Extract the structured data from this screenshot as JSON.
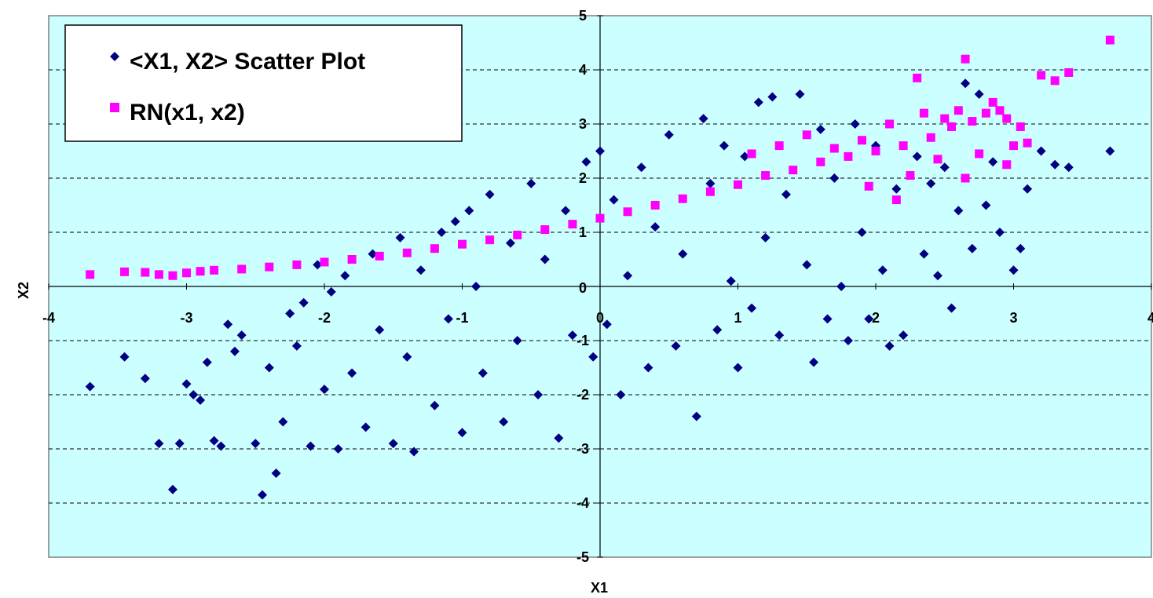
{
  "chart_data": {
    "type": "scatter",
    "xlabel": "X1",
    "ylabel": "X2",
    "xlim": [
      -4,
      4
    ],
    "ylim": [
      -5,
      5
    ],
    "x_ticks": [
      "-4",
      "-3",
      "-2",
      "-1",
      "0",
      "1",
      "2",
      "3",
      "4"
    ],
    "y_ticks": [
      "5",
      "4",
      "3",
      "2",
      "1",
      "0",
      "-1",
      "-2",
      "-3",
      "-4",
      "-5"
    ],
    "grid": "horizontal dashed",
    "legend_placement": "top-left",
    "plot_background": "#ccffff",
    "series": [
      {
        "name": "<X1, X2> Scatter Plot",
        "marker": "diamond",
        "color": "#000080",
        "points": [
          [
            -3.7,
            -1.85
          ],
          [
            -3.45,
            -1.3
          ],
          [
            -3.3,
            -1.7
          ],
          [
            -3.2,
            -2.9
          ],
          [
            -3.1,
            -3.75
          ],
          [
            -3.05,
            -2.9
          ],
          [
            -3.0,
            -1.8
          ],
          [
            -2.95,
            -2.0
          ],
          [
            -2.9,
            -2.1
          ],
          [
            -2.85,
            -1.4
          ],
          [
            -2.8,
            -2.85
          ],
          [
            -2.75,
            -2.95
          ],
          [
            -2.7,
            -0.7
          ],
          [
            -2.65,
            -1.2
          ],
          [
            -2.6,
            -0.9
          ],
          [
            -2.5,
            -2.9
          ],
          [
            -2.45,
            -3.85
          ],
          [
            -2.4,
            -1.5
          ],
          [
            -2.35,
            -3.45
          ],
          [
            -2.3,
            -2.5
          ],
          [
            -2.25,
            -0.5
          ],
          [
            -2.2,
            -1.1
          ],
          [
            -2.15,
            -0.3
          ],
          [
            -2.1,
            -2.95
          ],
          [
            -2.05,
            0.4
          ],
          [
            -2.0,
            -1.9
          ],
          [
            -1.95,
            -0.1
          ],
          [
            -1.9,
            -3.0
          ],
          [
            -1.85,
            0.2
          ],
          [
            -1.8,
            -1.6
          ],
          [
            -1.7,
            -2.6
          ],
          [
            -1.65,
            0.6
          ],
          [
            -1.6,
            -0.8
          ],
          [
            -1.5,
            -2.9
          ],
          [
            -1.45,
            0.9
          ],
          [
            -1.4,
            -1.3
          ],
          [
            -1.35,
            -3.05
          ],
          [
            -1.3,
            0.3
          ],
          [
            -1.2,
            -2.2
          ],
          [
            -1.15,
            1.0
          ],
          [
            -1.1,
            -0.6
          ],
          [
            -1.05,
            1.2
          ],
          [
            -1.0,
            -2.7
          ],
          [
            -0.95,
            1.4
          ],
          [
            -0.9,
            0.0
          ],
          [
            -0.85,
            -1.6
          ],
          [
            -0.8,
            1.7
          ],
          [
            -0.7,
            -2.5
          ],
          [
            -0.65,
            0.8
          ],
          [
            -0.6,
            -1.0
          ],
          [
            -0.5,
            1.9
          ],
          [
            -0.45,
            -2.0
          ],
          [
            -0.4,
            0.5
          ],
          [
            -0.3,
            -2.8
          ],
          [
            -0.25,
            1.4
          ],
          [
            -0.2,
            -0.9
          ],
          [
            -0.1,
            2.3
          ],
          [
            -0.05,
            -1.3
          ],
          [
            0.0,
            2.5
          ],
          [
            0.05,
            -0.7
          ],
          [
            0.1,
            1.6
          ],
          [
            0.15,
            -2.0
          ],
          [
            0.2,
            0.2
          ],
          [
            0.3,
            2.2
          ],
          [
            0.35,
            -1.5
          ],
          [
            0.4,
            1.1
          ],
          [
            0.5,
            2.8
          ],
          [
            0.55,
            -1.1
          ],
          [
            0.6,
            0.6
          ],
          [
            0.7,
            -2.4
          ],
          [
            0.75,
            3.1
          ],
          [
            0.8,
            1.9
          ],
          [
            0.85,
            -0.8
          ],
          [
            0.9,
            2.6
          ],
          [
            0.95,
            0.1
          ],
          [
            1.0,
            -1.5
          ],
          [
            1.05,
            2.4
          ],
          [
            1.1,
            -0.4
          ],
          [
            1.15,
            3.4
          ],
          [
            1.2,
            0.9
          ],
          [
            1.25,
            3.5
          ],
          [
            1.3,
            -0.9
          ],
          [
            1.35,
            1.7
          ],
          [
            1.45,
            3.55
          ],
          [
            1.5,
            0.4
          ],
          [
            1.55,
            -1.4
          ],
          [
            1.6,
            2.9
          ],
          [
            1.65,
            -0.6
          ],
          [
            1.7,
            2.0
          ],
          [
            1.75,
            0.0
          ],
          [
            1.8,
            -1.0
          ],
          [
            1.85,
            3.0
          ],
          [
            1.9,
            1.0
          ],
          [
            1.95,
            -0.6
          ],
          [
            2.0,
            2.6
          ],
          [
            2.05,
            0.3
          ],
          [
            2.1,
            -1.1
          ],
          [
            2.15,
            1.8
          ],
          [
            2.2,
            -0.9
          ],
          [
            2.3,
            2.4
          ],
          [
            2.35,
            0.6
          ],
          [
            2.4,
            1.9
          ],
          [
            2.45,
            0.2
          ],
          [
            2.5,
            2.2
          ],
          [
            2.55,
            -0.4
          ],
          [
            2.6,
            1.4
          ],
          [
            2.65,
            3.75
          ],
          [
            2.7,
            0.7
          ],
          [
            2.75,
            3.55
          ],
          [
            2.8,
            1.5
          ],
          [
            2.85,
            2.3
          ],
          [
            2.9,
            1.0
          ],
          [
            3.0,
            0.3
          ],
          [
            3.05,
            0.7
          ],
          [
            3.1,
            1.8
          ],
          [
            3.2,
            2.5
          ],
          [
            3.3,
            2.25
          ],
          [
            3.4,
            2.2
          ],
          [
            3.7,
            2.5
          ]
        ]
      },
      {
        "name": "RN(x1, x2)",
        "marker": "square",
        "color": "#ff00ff",
        "points": [
          [
            -3.7,
            0.22
          ],
          [
            -3.45,
            0.27
          ],
          [
            -3.3,
            0.26
          ],
          [
            -3.2,
            0.22
          ],
          [
            -3.1,
            0.2
          ],
          [
            -3.0,
            0.25
          ],
          [
            -2.9,
            0.28
          ],
          [
            -2.8,
            0.3
          ],
          [
            -2.6,
            0.32
          ],
          [
            -2.4,
            0.36
          ],
          [
            -2.2,
            0.4
          ],
          [
            -2.0,
            0.45
          ],
          [
            -1.8,
            0.5
          ],
          [
            -1.6,
            0.56
          ],
          [
            -1.4,
            0.62
          ],
          [
            -1.2,
            0.7
          ],
          [
            -1.0,
            0.78
          ],
          [
            -0.8,
            0.86
          ],
          [
            -0.6,
            0.95
          ],
          [
            -0.4,
            1.05
          ],
          [
            -0.2,
            1.15
          ],
          [
            0.0,
            1.26
          ],
          [
            0.2,
            1.38
          ],
          [
            0.4,
            1.5
          ],
          [
            0.6,
            1.62
          ],
          [
            0.8,
            1.75
          ],
          [
            1.0,
            1.88
          ],
          [
            1.1,
            2.45
          ],
          [
            1.2,
            2.05
          ],
          [
            1.3,
            2.6
          ],
          [
            1.4,
            2.15
          ],
          [
            1.5,
            2.8
          ],
          [
            1.6,
            2.3
          ],
          [
            1.7,
            2.55
          ],
          [
            1.8,
            2.4
          ],
          [
            1.9,
            2.7
          ],
          [
            2.0,
            2.5
          ],
          [
            2.1,
            3.0
          ],
          [
            2.2,
            2.6
          ],
          [
            2.3,
            3.85
          ],
          [
            2.35,
            3.2
          ],
          [
            2.4,
            2.75
          ],
          [
            2.5,
            3.1
          ],
          [
            2.55,
            2.95
          ],
          [
            2.6,
            3.25
          ],
          [
            2.65,
            4.2
          ],
          [
            2.7,
            3.05
          ],
          [
            2.75,
            2.45
          ],
          [
            2.8,
            3.2
          ],
          [
            2.85,
            3.4
          ],
          [
            2.9,
            3.25
          ],
          [
            2.95,
            3.1
          ],
          [
            3.0,
            2.6
          ],
          [
            3.05,
            2.95
          ],
          [
            3.1,
            2.65
          ],
          [
            3.2,
            3.9
          ],
          [
            3.3,
            3.8
          ],
          [
            3.4,
            3.95
          ],
          [
            3.7,
            4.55
          ],
          [
            2.15,
            1.6
          ],
          [
            2.45,
            2.35
          ],
          [
            2.25,
            2.05
          ],
          [
            1.95,
            1.85
          ],
          [
            2.65,
            2.0
          ],
          [
            2.95,
            2.25
          ]
        ]
      }
    ]
  }
}
